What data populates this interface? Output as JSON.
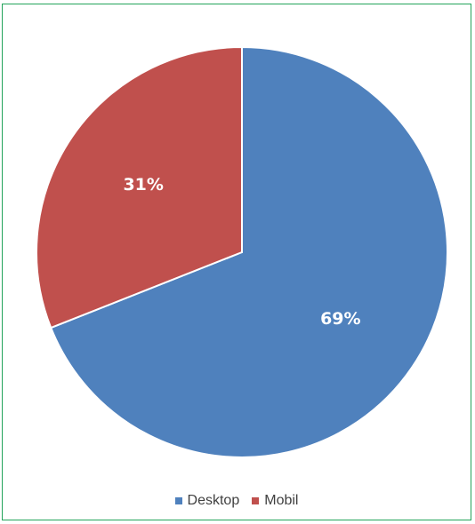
{
  "chart_data": {
    "type": "pie",
    "title": "",
    "slices": [
      {
        "label": "Desktop",
        "value": 69,
        "display": "69%",
        "color": "#4f81bd"
      },
      {
        "label": "Mobil",
        "value": 31,
        "display": "31%",
        "color": "#c0504d"
      }
    ],
    "start_angle_deg": 0,
    "direction": "clockwise",
    "legend_position": "bottom"
  }
}
